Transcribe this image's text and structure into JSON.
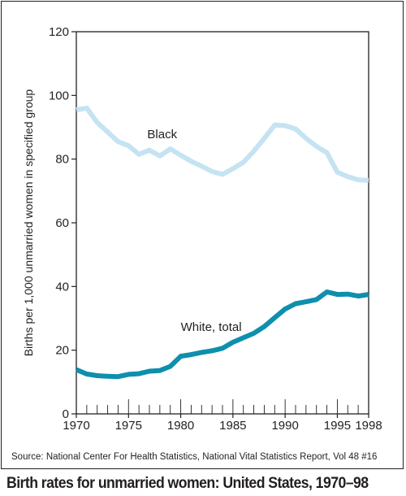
{
  "chart_data": {
    "type": "line",
    "title": "Birth rates for unmarried women: United States, 1970–98",
    "ylabel": "Births per 1,000 unmarried women in specified group",
    "xlabel": "",
    "xlim": [
      1970,
      1998
    ],
    "ylim": [
      0,
      120
    ],
    "x_ticks": [
      1970,
      1975,
      1980,
      1985,
      1990,
      1995,
      1998
    ],
    "y_ticks": [
      0,
      20,
      40,
      60,
      80,
      100,
      120
    ],
    "grid": false,
    "x": [
      1970,
      1971,
      1972,
      1973,
      1974,
      1975,
      1976,
      1977,
      1978,
      1979,
      1980,
      1981,
      1982,
      1983,
      1984,
      1985,
      1986,
      1987,
      1988,
      1989,
      1990,
      1991,
      1992,
      1993,
      1994,
      1995,
      1996,
      1997,
      1998
    ],
    "series": [
      {
        "name": "Black",
        "color": "#c5e3f2",
        "values": [
          95.5,
          96.0,
          91.5,
          88.5,
          85.5,
          84.2,
          81.5,
          82.8,
          81.0,
          83.2,
          81.2,
          79.3,
          77.8,
          76.1,
          75.2,
          77.0,
          79.0,
          82.5,
          86.5,
          90.7,
          90.5,
          89.5,
          86.5,
          84.0,
          82.0,
          75.9,
          74.5,
          73.5,
          73.3
        ]
      },
      {
        "name": "White, total",
        "color": "#0e8fad",
        "values": [
          13.9,
          12.5,
          12.0,
          11.8,
          11.7,
          12.4,
          12.6,
          13.4,
          13.6,
          14.9,
          18.1,
          18.6,
          19.3,
          19.8,
          20.6,
          22.5,
          23.9,
          25.3,
          27.4,
          30.2,
          32.9,
          34.6,
          35.2,
          35.9,
          38.3,
          37.5,
          37.6,
          37.0,
          37.5
        ]
      }
    ],
    "annotations": [
      {
        "text": "Black",
        "x": 1976.8,
        "y": 86.5
      },
      {
        "text": "White, total",
        "x": 1980.0,
        "y": 26.0
      }
    ],
    "source": "Source: National Center For Health Statistics, National Vital Statistics Report, Vol 48 #16"
  }
}
